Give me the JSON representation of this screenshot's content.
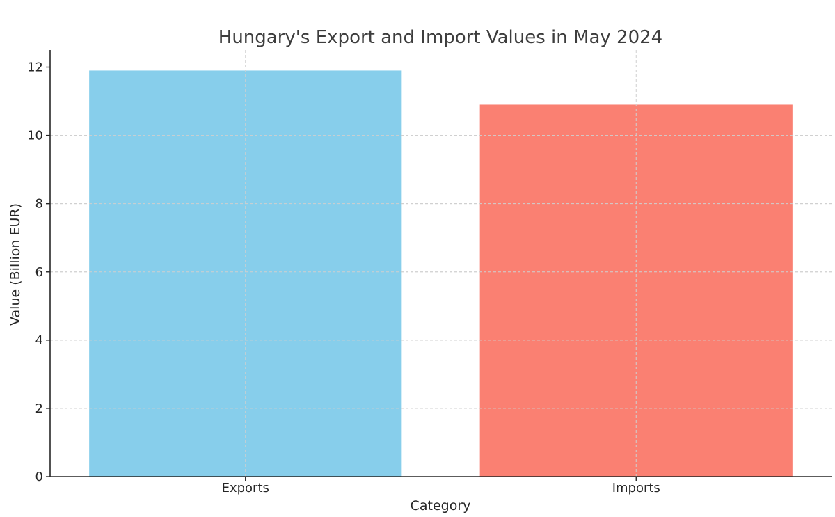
{
  "chart_data": {
    "type": "bar",
    "title": "Hungary's Export and Import Values in May 2024",
    "xlabel": "Category",
    "ylabel": "Value (Billion EUR)",
    "categories": [
      "Exports",
      "Imports"
    ],
    "values": [
      11.9,
      10.9
    ],
    "colors": [
      "#87ceeb",
      "#fa8072"
    ],
    "ylim": [
      0,
      12.5
    ],
    "yticks": [
      0,
      2,
      4,
      6,
      8,
      10,
      12
    ],
    "ytick_labels": [
      "0",
      "2",
      "4",
      "6",
      "8",
      "10",
      "12"
    ],
    "grid": true,
    "grid_style": "dashed"
  }
}
